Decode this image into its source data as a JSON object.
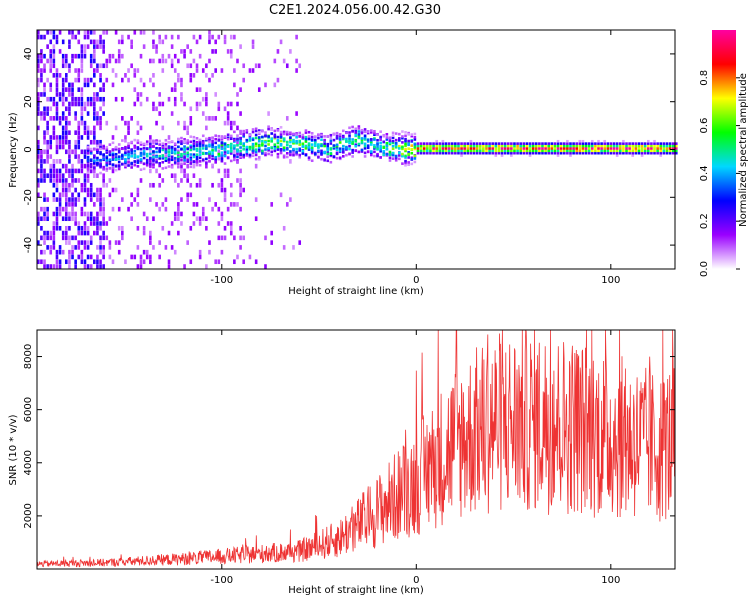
{
  "title": "C2E1.2024.056.00.42.G30",
  "chart_data": [
    {
      "id": "spectrogram",
      "type": "heatmap",
      "xlabel": "Height of straight line (km)",
      "ylabel": "Frequency (Hz)",
      "xlim": [
        -195,
        133
      ],
      "ylim": [
        -50,
        50
      ],
      "xticks": [
        -100,
        0,
        100
      ],
      "yticks": [
        -40,
        -20,
        0,
        20,
        40
      ],
      "colorbar": {
        "label": "Normalized spectral amplitude",
        "range": [
          0,
          1
        ],
        "ticks": [
          "0.0",
          "0.2",
          "0.4",
          "0.6",
          "0.8"
        ],
        "colors": [
          "#ffffff",
          "#9a00ff",
          "#0000ff",
          "#00d8ff",
          "#00ff00",
          "#ffff00",
          "#ff0000",
          "#ff00a0"
        ]
      },
      "ridge": [
        {
          "x": -165,
          "f": -4,
          "a": 0.35
        },
        {
          "x": -150,
          "f": -3,
          "a": 0.4
        },
        {
          "x": -130,
          "f": -2,
          "a": 0.45
        },
        {
          "x": -110,
          "f": -1,
          "a": 0.5
        },
        {
          "x": -90,
          "f": 1,
          "a": 0.55
        },
        {
          "x": -75,
          "f": 3,
          "a": 0.6
        },
        {
          "x": -60,
          "f": 2,
          "a": 0.55
        },
        {
          "x": -45,
          "f": 0,
          "a": 0.5
        },
        {
          "x": -30,
          "f": 4,
          "a": 0.55
        },
        {
          "x": -20,
          "f": 1,
          "a": 0.5
        },
        {
          "x": -10,
          "f": 0,
          "a": 0.6
        },
        {
          "x": 0,
          "f": 0,
          "a": 0.75
        },
        {
          "x": 10,
          "f": 0,
          "a": 0.85
        },
        {
          "x": 50,
          "f": 0,
          "a": 0.88
        },
        {
          "x": 100,
          "f": 0,
          "a": 0.9
        },
        {
          "x": 133,
          "f": 0,
          "a": 0.85
        }
      ]
    },
    {
      "id": "snr",
      "type": "line",
      "xlabel": "Height of straight line (km)",
      "ylabel": "SNR (10 * v/v)",
      "xlim": [
        -195,
        133
      ],
      "ylim": [
        0,
        9000
      ],
      "xticks": [
        -100,
        0,
        100
      ],
      "yticks": [
        2000,
        4000,
        6000,
        8000
      ],
      "color": "#ee3333",
      "envelope": {
        "x": [
          -195,
          -160,
          -120,
          -80,
          -60,
          -40,
          -20,
          0,
          20,
          40,
          60,
          80,
          100,
          115,
          125,
          133
        ],
        "y": [
          200,
          250,
          400,
          600,
          700,
          1200,
          2300,
          3500,
          5000,
          5800,
          5900,
          5700,
          5300,
          5000,
          4800,
          5200
        ]
      }
    }
  ]
}
